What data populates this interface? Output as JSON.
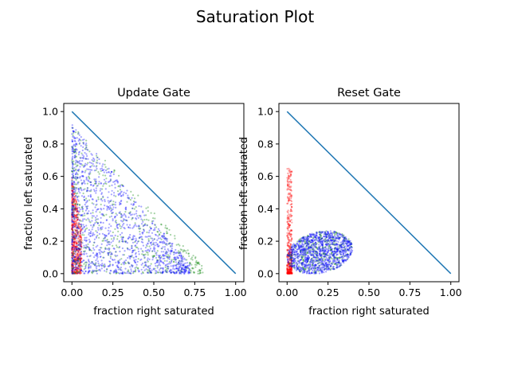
{
  "figure": {
    "title": "Saturation Plot"
  },
  "chart_data": [
    {
      "type": "scatter",
      "title": "Update Gate",
      "xlabel": "fraction right saturated",
      "ylabel": "fraction left saturated",
      "xlim": [
        -0.05,
        1.05
      ],
      "ylim": [
        -0.05,
        1.05
      ],
      "xticks": [
        "0.00",
        "0.25",
        "0.50",
        "0.75",
        "1.00"
      ],
      "yticks": [
        "0.0",
        "0.2",
        "0.4",
        "0.6",
        "0.8",
        "1.0"
      ],
      "grid": false,
      "series": [
        {
          "color": "#ff0000",
          "region": {
            "x": [
              0.0,
              0.06
            ],
            "y": [
              0.0,
              0.6
            ]
          }
        },
        {
          "color": "#008000",
          "region": {
            "x": [
              0.0,
              0.8
            ],
            "y": [
              0.0,
              0.92
            ]
          }
        },
        {
          "color": "#0000ff",
          "region": {
            "x": [
              0.0,
              0.72
            ],
            "y": [
              0.0,
              0.92
            ]
          }
        },
        {
          "type": "line",
          "color": "#1f77b4",
          "x": [
            0,
            1
          ],
          "y": [
            1,
            0
          ]
        }
      ]
    },
    {
      "type": "scatter",
      "title": "Reset Gate",
      "xlabel": "fraction right saturated",
      "ylabel": "fraction left saturated",
      "xlim": [
        -0.05,
        1.05
      ],
      "ylim": [
        -0.05,
        1.05
      ],
      "xticks": [
        "0.00",
        "0.25",
        "0.50",
        "0.75",
        "1.00"
      ],
      "yticks": [
        "0.0",
        "0.2",
        "0.4",
        "0.6",
        "0.8",
        "1.0"
      ],
      "grid": false,
      "series": [
        {
          "color": "#ff0000",
          "region": {
            "x": [
              0.0,
              0.03
            ],
            "y": [
              0.0,
              0.65
            ]
          }
        },
        {
          "color": "#008000",
          "region": {
            "x": [
              0.0,
              0.5
            ],
            "y": [
              0.0,
              0.35
            ]
          }
        },
        {
          "color": "#0000ff",
          "region": {
            "x": [
              0.0,
              0.45
            ],
            "y": [
              0.0,
              0.38
            ]
          }
        },
        {
          "type": "line",
          "color": "#1f77b4",
          "x": [
            0,
            1
          ],
          "y": [
            1,
            0
          ]
        }
      ]
    }
  ]
}
